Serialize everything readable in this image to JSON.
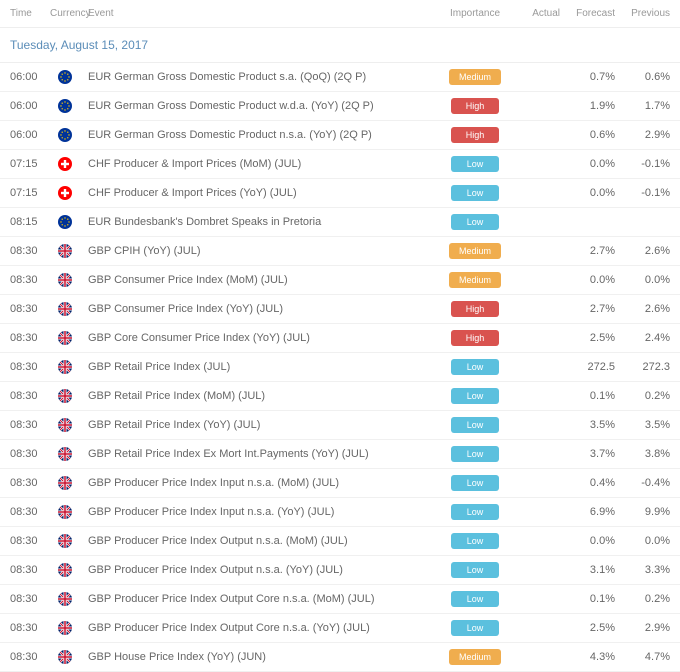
{
  "headers": {
    "time": "Time",
    "currency": "Currency",
    "event": "Event",
    "importance": "Importance",
    "actual": "Actual",
    "forecast": "Forecast",
    "previous": "Previous"
  },
  "date_label": "Tuesday, August 15, 2017",
  "colors": {
    "low": "#5bc0de",
    "medium": "#f0ad4e",
    "high": "#d9534f",
    "eur_flag": "#003399",
    "chf_flag": "#ff0000",
    "gbp_flag": "#c8102e"
  },
  "importance_labels": {
    "low": "Low",
    "medium": "Medium",
    "high": "High"
  },
  "rows": [
    {
      "time": "06:00",
      "currency": "EUR",
      "event": "EUR German Gross Domestic Product s.a. (QoQ) (2Q P)",
      "importance": "medium",
      "actual": "",
      "forecast": "0.7%",
      "previous": "0.6%"
    },
    {
      "time": "06:00",
      "currency": "EUR",
      "event": "EUR German Gross Domestic Product w.d.a. (YoY) (2Q P)",
      "importance": "high",
      "actual": "",
      "forecast": "1.9%",
      "previous": "1.7%"
    },
    {
      "time": "06:00",
      "currency": "EUR",
      "event": "EUR German Gross Domestic Product n.s.a. (YoY) (2Q P)",
      "importance": "high",
      "actual": "",
      "forecast": "0.6%",
      "previous": "2.9%"
    },
    {
      "time": "07:15",
      "currency": "CHF",
      "event": "CHF Producer & Import Prices (MoM) (JUL)",
      "importance": "low",
      "actual": "",
      "forecast": "0.0%",
      "previous": "-0.1%"
    },
    {
      "time": "07:15",
      "currency": "CHF",
      "event": "CHF Producer & Import Prices (YoY) (JUL)",
      "importance": "low",
      "actual": "",
      "forecast": "0.0%",
      "previous": "-0.1%"
    },
    {
      "time": "08:15",
      "currency": "EUR",
      "event": "EUR Bundesbank's Dombret Speaks in Pretoria",
      "importance": "low",
      "actual": "",
      "forecast": "",
      "previous": ""
    },
    {
      "time": "08:30",
      "currency": "GBP",
      "event": "GBP CPIH (YoY) (JUL)",
      "importance": "medium",
      "actual": "",
      "forecast": "2.7%",
      "previous": "2.6%"
    },
    {
      "time": "08:30",
      "currency": "GBP",
      "event": "GBP Consumer Price Index (MoM) (JUL)",
      "importance": "medium",
      "actual": "",
      "forecast": "0.0%",
      "previous": "0.0%"
    },
    {
      "time": "08:30",
      "currency": "GBP",
      "event": "GBP Consumer Price Index (YoY) (JUL)",
      "importance": "high",
      "actual": "",
      "forecast": "2.7%",
      "previous": "2.6%"
    },
    {
      "time": "08:30",
      "currency": "GBP",
      "event": "GBP Core Consumer Price Index (YoY) (JUL)",
      "importance": "high",
      "actual": "",
      "forecast": "2.5%",
      "previous": "2.4%"
    },
    {
      "time": "08:30",
      "currency": "GBP",
      "event": "GBP Retail Price Index (JUL)",
      "importance": "low",
      "actual": "",
      "forecast": "272.5",
      "previous": "272.3"
    },
    {
      "time": "08:30",
      "currency": "GBP",
      "event": "GBP Retail Price Index (MoM) (JUL)",
      "importance": "low",
      "actual": "",
      "forecast": "0.1%",
      "previous": "0.2%"
    },
    {
      "time": "08:30",
      "currency": "GBP",
      "event": "GBP Retail Price Index (YoY) (JUL)",
      "importance": "low",
      "actual": "",
      "forecast": "3.5%",
      "previous": "3.5%"
    },
    {
      "time": "08:30",
      "currency": "GBP",
      "event": "GBP Retail Price Index Ex Mort Int.Payments (YoY) (JUL)",
      "importance": "low",
      "actual": "",
      "forecast": "3.7%",
      "previous": "3.8%"
    },
    {
      "time": "08:30",
      "currency": "GBP",
      "event": "GBP Producer Price Index Input n.s.a. (MoM) (JUL)",
      "importance": "low",
      "actual": "",
      "forecast": "0.4%",
      "previous": "-0.4%"
    },
    {
      "time": "08:30",
      "currency": "GBP",
      "event": "GBP Producer Price Index Input n.s.a. (YoY) (JUL)",
      "importance": "low",
      "actual": "",
      "forecast": "6.9%",
      "previous": "9.9%"
    },
    {
      "time": "08:30",
      "currency": "GBP",
      "event": "GBP Producer Price Index Output n.s.a. (MoM) (JUL)",
      "importance": "low",
      "actual": "",
      "forecast": "0.0%",
      "previous": "0.0%"
    },
    {
      "time": "08:30",
      "currency": "GBP",
      "event": "GBP Producer Price Index Output n.s.a. (YoY) (JUL)",
      "importance": "low",
      "actual": "",
      "forecast": "3.1%",
      "previous": "3.3%"
    },
    {
      "time": "08:30",
      "currency": "GBP",
      "event": "GBP Producer Price Index Output Core n.s.a. (MoM) (JUL)",
      "importance": "low",
      "actual": "",
      "forecast": "0.1%",
      "previous": "0.2%"
    },
    {
      "time": "08:30",
      "currency": "GBP",
      "event": "GBP Producer Price Index Output Core n.s.a. (YoY) (JUL)",
      "importance": "low",
      "actual": "",
      "forecast": "2.5%",
      "previous": "2.9%"
    },
    {
      "time": "08:30",
      "currency": "GBP",
      "event": "GBP House Price Index (YoY) (JUN)",
      "importance": "medium",
      "actual": "",
      "forecast": "4.3%",
      "previous": "4.7%"
    }
  ]
}
